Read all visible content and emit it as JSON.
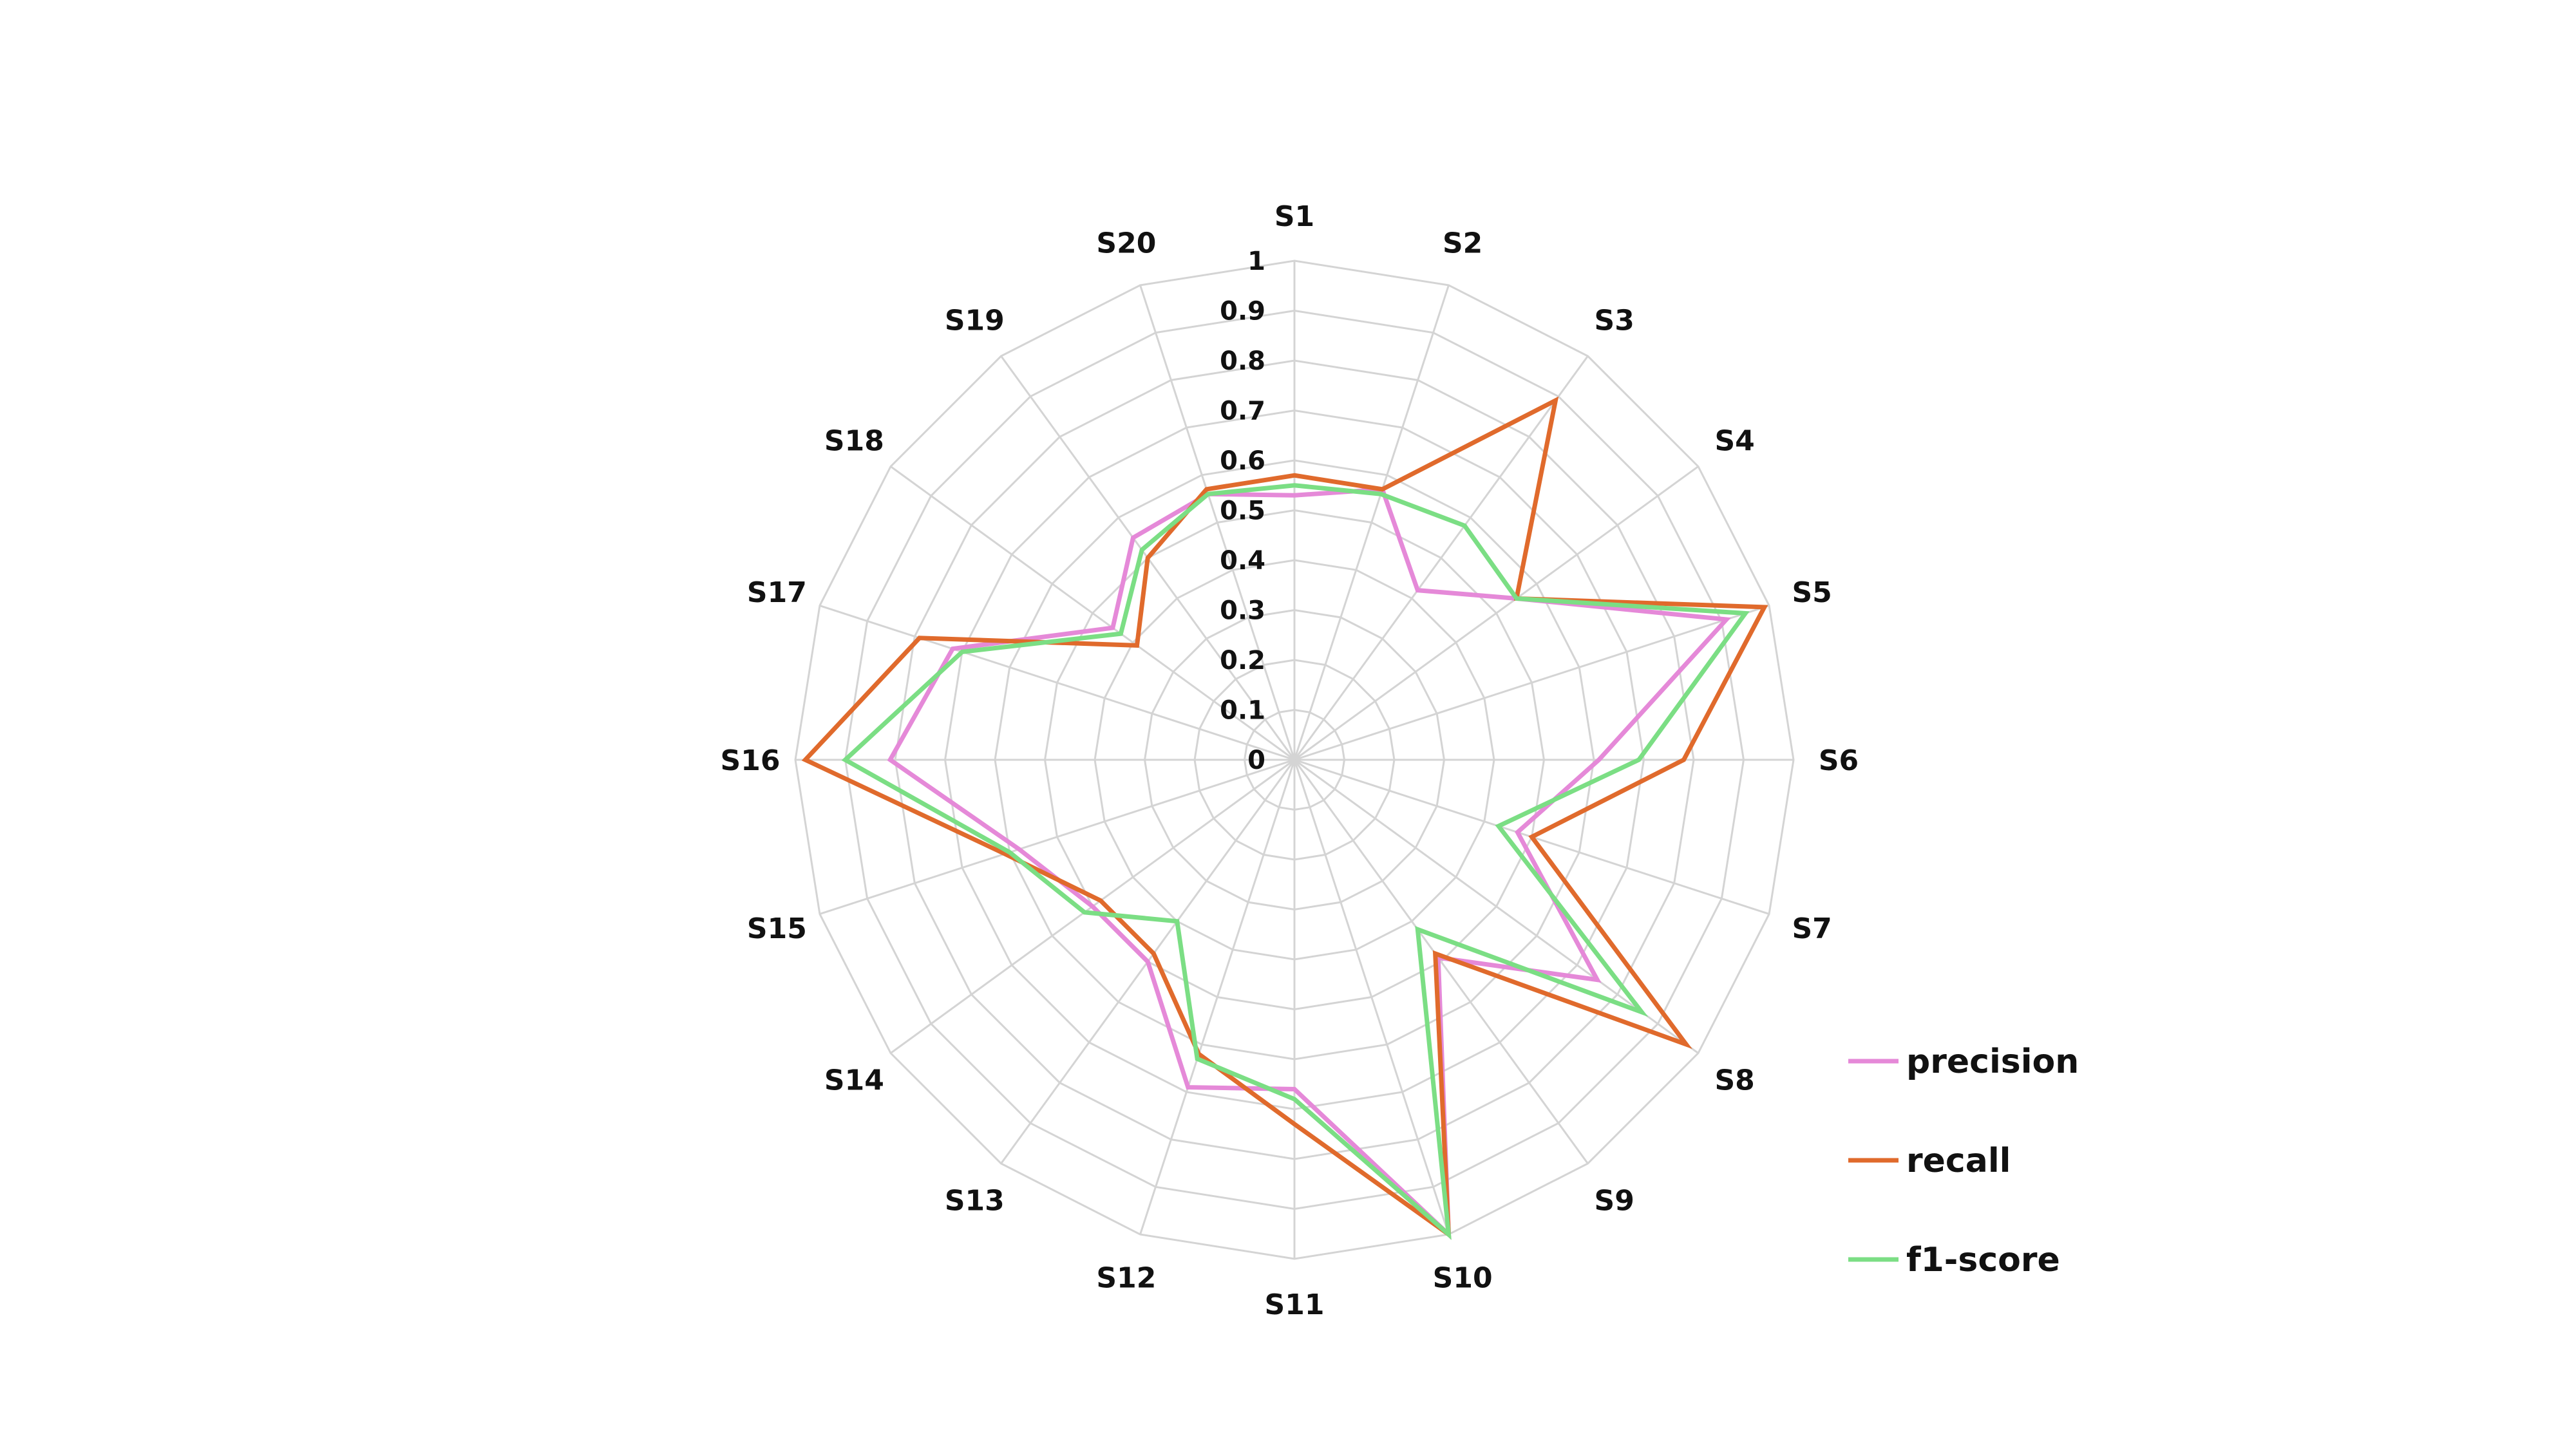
{
  "chart_data": {
    "type": "radar",
    "categories": [
      "S1",
      "S2",
      "S3",
      "S4",
      "S5",
      "S6",
      "S7",
      "S8",
      "S9",
      "S10",
      "S11",
      "S12",
      "S13",
      "S14",
      "S15",
      "S16",
      "S17",
      "S18",
      "S19",
      "S20"
    ],
    "r_ticks": [
      "0",
      "0.1",
      "0.2",
      "0.3",
      "0.4",
      "0.5",
      "0.6",
      "0.7",
      "0.8",
      "0.9",
      "1"
    ],
    "rlim": [
      0,
      1
    ],
    "grid": true,
    "legend_position": "bottom-right",
    "series": [
      {
        "name": "precision",
        "color": "#e589d8",
        "values": [
          0.53,
          0.57,
          0.42,
          0.55,
          0.91,
          0.61,
          0.47,
          0.75,
          0.49,
          1.0,
          0.66,
          0.69,
          0.5,
          0.5,
          0.58,
          0.81,
          0.72,
          0.45,
          0.55,
          0.56
        ]
      },
      {
        "name": "recall",
        "color": "#e06a2c",
        "values": [
          0.57,
          0.57,
          0.89,
          0.55,
          0.99,
          0.78,
          0.5,
          0.97,
          0.48,
          1.0,
          0.73,
          0.62,
          0.48,
          0.48,
          0.61,
          0.98,
          0.79,
          0.39,
          0.5,
          0.57
        ]
      },
      {
        "name": "f1-score",
        "color": "#7bde84",
        "values": [
          0.55,
          0.56,
          0.58,
          0.55,
          0.95,
          0.69,
          0.43,
          0.86,
          0.42,
          1.0,
          0.68,
          0.63,
          0.4,
          0.52,
          0.6,
          0.9,
          0.7,
          0.43,
          0.52,
          0.56
        ]
      }
    ]
  }
}
